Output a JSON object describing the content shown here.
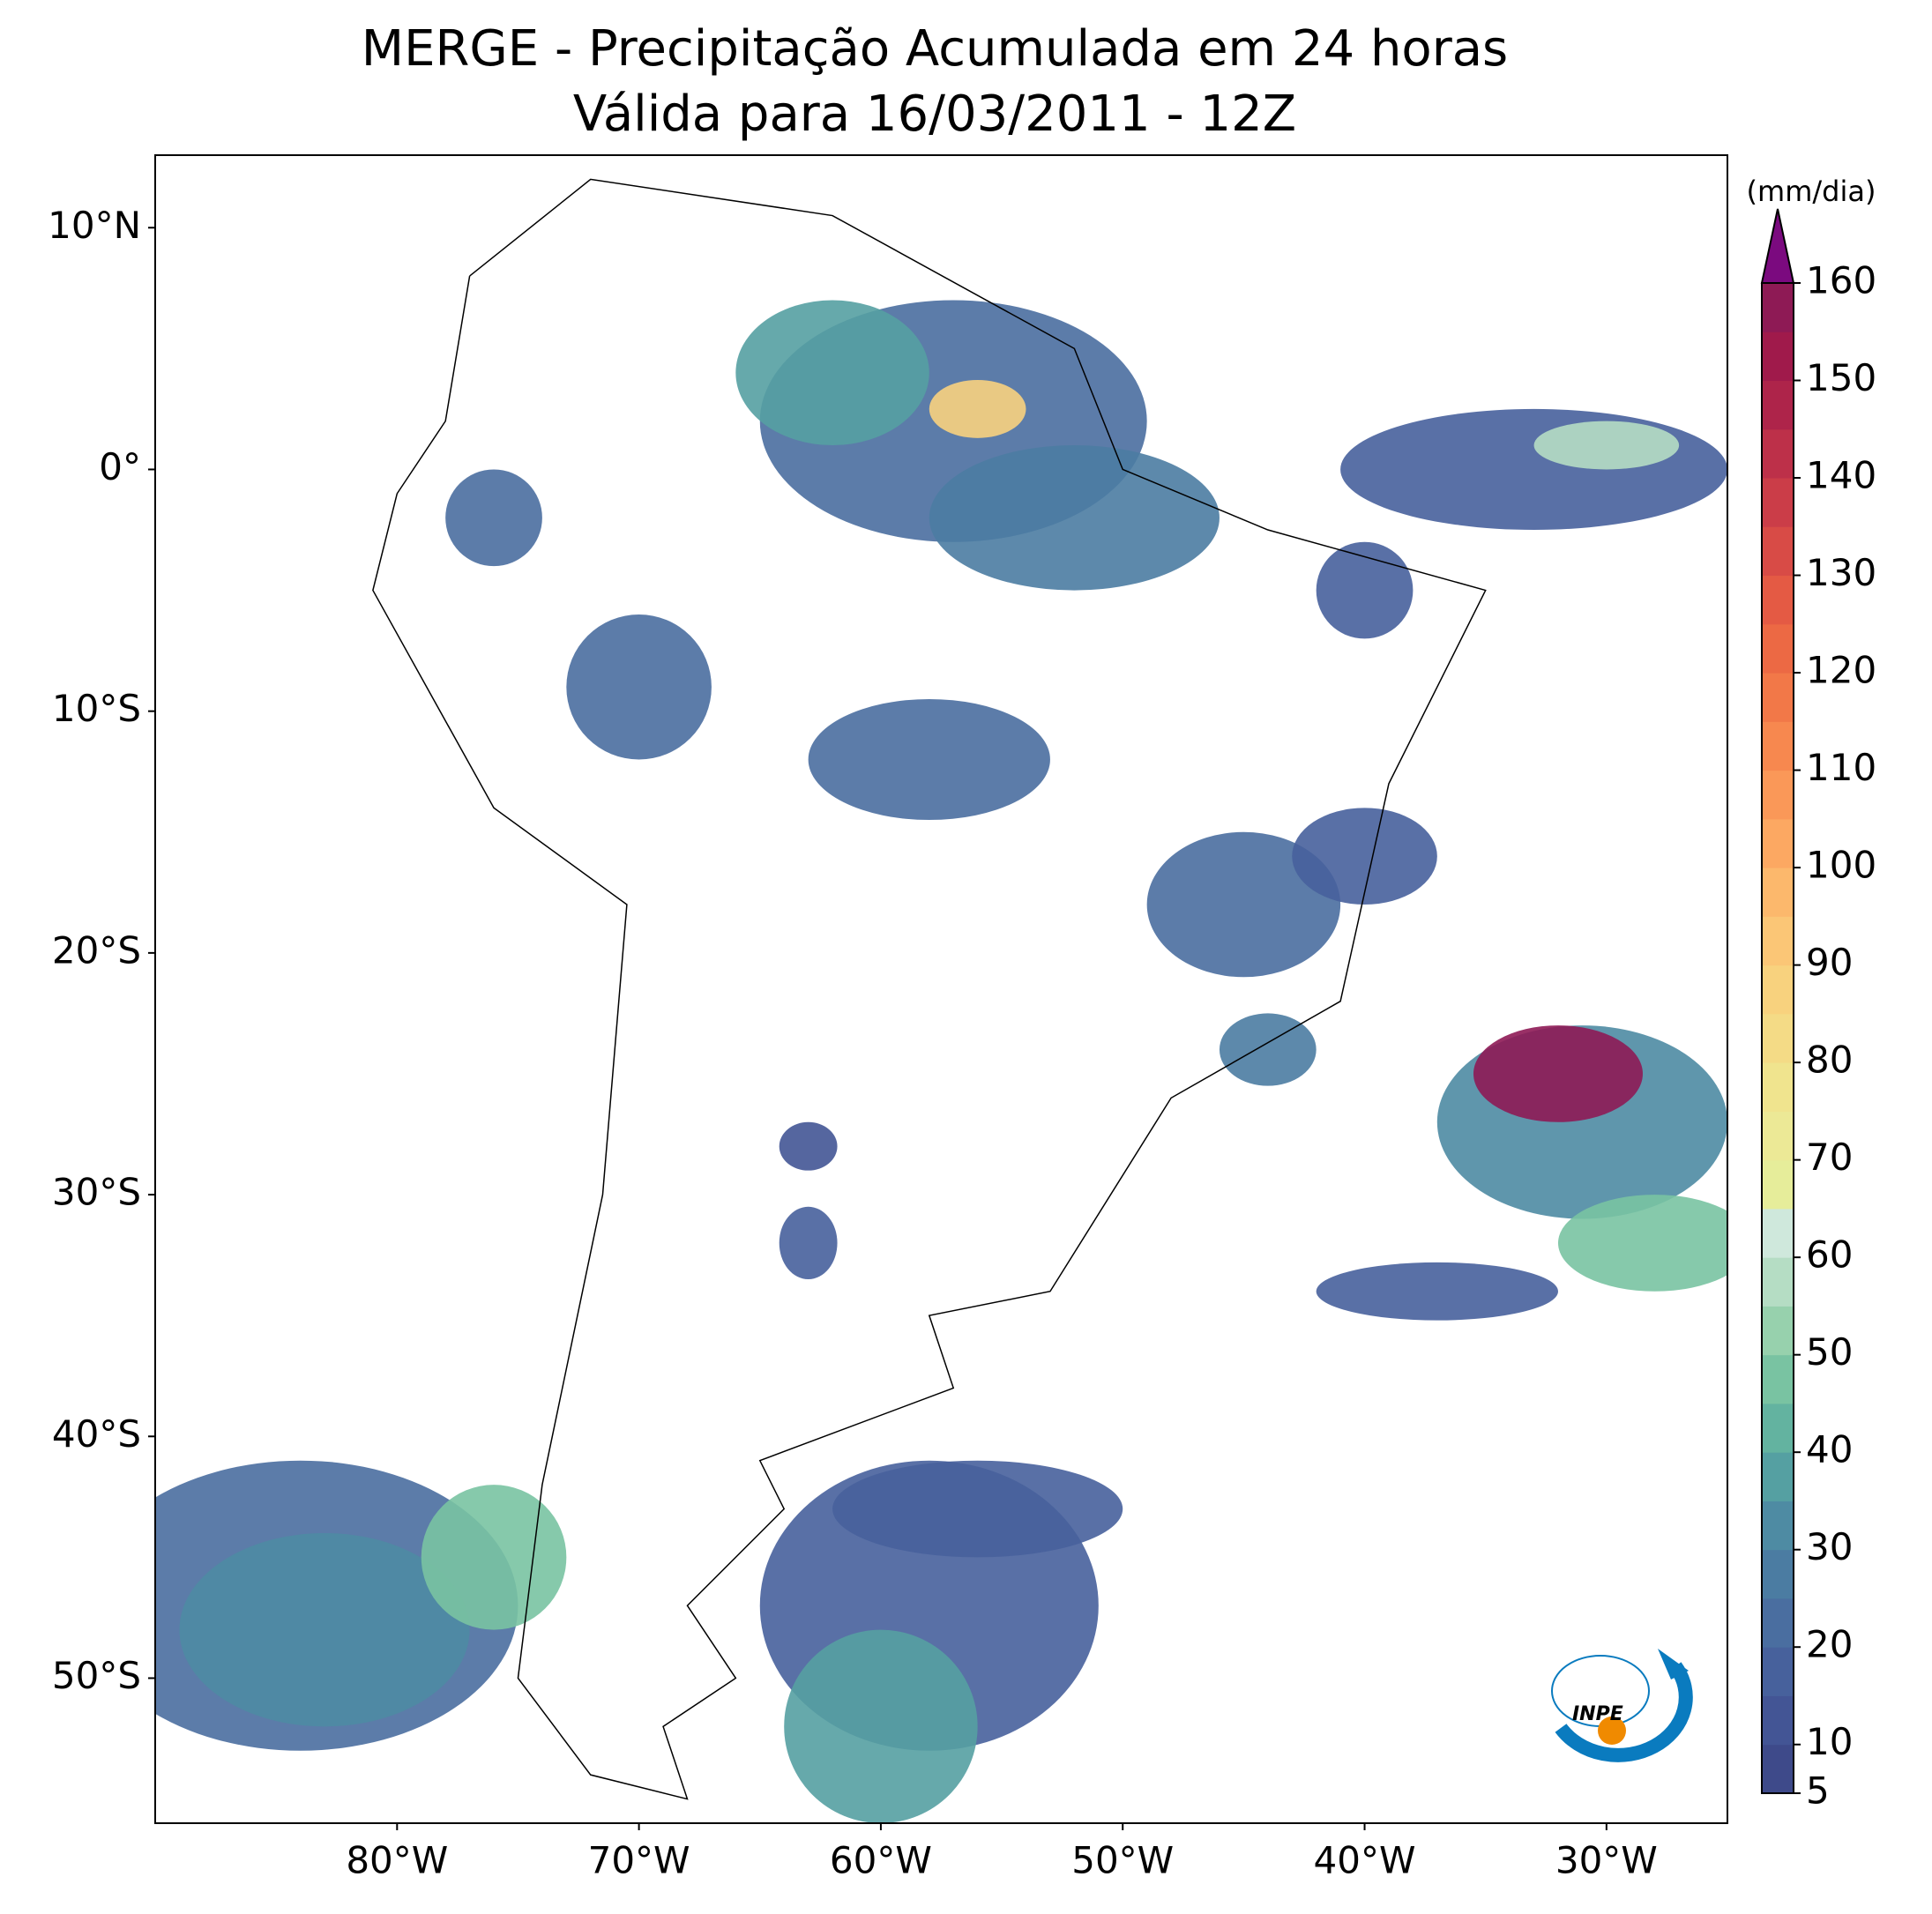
{
  "title": [
    "MERGE - Precipitação Acumulada em 24 horas",
    "Válida para 16/03/2011 - 12Z"
  ],
  "map": {
    "xlim": [
      -90,
      -25
    ],
    "ylim": [
      -56,
      13
    ],
    "lat_ticks": [
      {
        "value": 10,
        "label": "10°N"
      },
      {
        "value": 0,
        "label": "0°"
      },
      {
        "value": -10,
        "label": "10°S"
      },
      {
        "value": -20,
        "label": "20°S"
      },
      {
        "value": -30,
        "label": "30°S"
      },
      {
        "value": -40,
        "label": "40°S"
      },
      {
        "value": -50,
        "label": "50°S"
      }
    ],
    "lon_ticks": [
      {
        "value": -80,
        "label": "80°W"
      },
      {
        "value": -70,
        "label": "70°W"
      },
      {
        "value": -60,
        "label": "60°W"
      },
      {
        "value": -50,
        "label": "50°W"
      },
      {
        "value": -40,
        "label": "40°W"
      },
      {
        "value": -30,
        "label": "30°W"
      }
    ]
  },
  "colorbar": {
    "unit": "(mm/dia)",
    "lim": [
      5,
      160
    ],
    "ticks": [
      5,
      10,
      20,
      30,
      40,
      50,
      60,
      70,
      80,
      90,
      100,
      110,
      120,
      130,
      140,
      150,
      160
    ],
    "colors": [
      "#3e4a8a",
      "#435595",
      "#47619c",
      "#4a6ea0",
      "#4b7ca2",
      "#4e8ba3",
      "#55a0a2",
      "#63b3a0",
      "#79c3a2",
      "#97d1ad",
      "#b5ddc4",
      "#cfe8dc",
      "#e6ed9a",
      "#ece996",
      "#f0e48e",
      "#f4db86",
      "#f8d27e",
      "#fbc676",
      "#fcb86c",
      "#fca862",
      "#fa9858",
      "#f7884f",
      "#f27848",
      "#ec6944",
      "#e45a44",
      "#d84b46",
      "#cb3d48",
      "#bd3049",
      "#ae244a",
      "#a01a4b",
      "#8e1a55"
    ],
    "extend_color": "#7b0a7f"
  },
  "logo": "INPE"
}
